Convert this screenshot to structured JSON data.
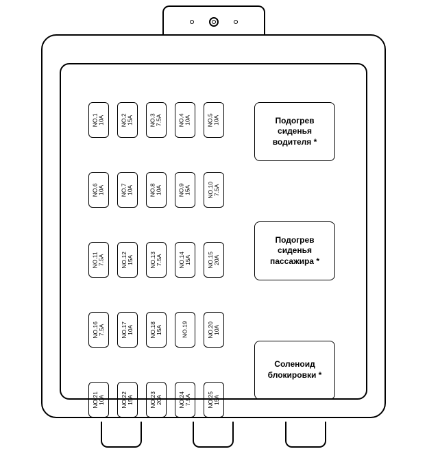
{
  "diagram": {
    "type": "fuse-box-diagram",
    "background_color": "#ffffff",
    "stroke_color": "#000000",
    "fuse_stroke": "#000000",
    "fuse_border_radius": 6,
    "relay_border_radius": 8,
    "fuse_font_size": 8.5,
    "relay_font_size": 12,
    "rows": [
      [
        {
          "num": "NO.1",
          "amp": "10A"
        },
        {
          "num": "NO.2",
          "amp": "15A"
        },
        {
          "num": "NO.3",
          "amp": "7.5A"
        },
        {
          "num": "NO.4",
          "amp": "10A"
        },
        {
          "num": "NO.5",
          "amp": "10A"
        }
      ],
      [
        {
          "num": "NO.6",
          "amp": "10A"
        },
        {
          "num": "NO.7",
          "amp": "10A"
        },
        {
          "num": "NO.8",
          "amp": "10A"
        },
        {
          "num": "NO.9",
          "amp": "15A"
        },
        {
          "num": "NO.10",
          "amp": "7.5A"
        }
      ],
      [
        {
          "num": "NO.11",
          "amp": "7.5A"
        },
        {
          "num": "NO.12",
          "amp": "15A"
        },
        {
          "num": "NO.13",
          "amp": "7.5A"
        },
        {
          "num": "NO.14",
          "amp": "15A"
        },
        {
          "num": "NO.15",
          "amp": "20A"
        }
      ],
      [
        {
          "num": "NO.16",
          "amp": "7.5A"
        },
        {
          "num": "NO.17",
          "amp": "10A"
        },
        {
          "num": "NO.18",
          "amp": "15A"
        },
        {
          "num": "NO.19",
          "amp": ""
        },
        {
          "num": "NO.20",
          "amp": "10A"
        }
      ],
      [
        {
          "num": "NO.21",
          "amp": "10A"
        },
        {
          "num": "NO.22",
          "amp": "15A"
        },
        {
          "num": "NO.23",
          "amp": "20A"
        },
        {
          "num": "NO.24",
          "amp": "7.5A"
        },
        {
          "num": "NO.25",
          "amp": "15A"
        }
      ]
    ],
    "relays": [
      {
        "label": "Подогрев сиденья водителя *"
      },
      {
        "label": "Подогрев сиденья пассажира *"
      },
      {
        "label": "Соленоид блокировки *"
      }
    ]
  }
}
